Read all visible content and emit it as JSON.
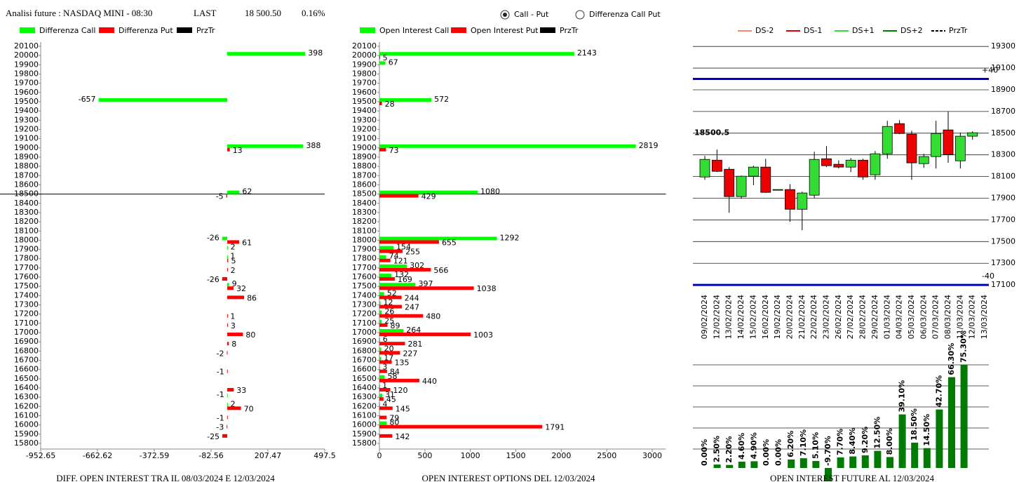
{
  "header": {
    "title": "Analisi future : NASDAQ MINI - 08:30",
    "last_label": "LAST",
    "last_value": "18 500.50",
    "change": "0.16%"
  },
  "mode_options": [
    {
      "label": "Call - Put",
      "selected": true
    },
    {
      "label": "Differenza Call Put",
      "selected": false
    }
  ],
  "chart_data": [
    {
      "type": "hbar",
      "xlabel": "DIFF. OPEN INTEREST TRA IL 08/03/2024 E 12/03/2024",
      "categories": [
        "20100",
        "20000",
        "19900",
        "19800",
        "19700",
        "19600",
        "19500",
        "19400",
        "19300",
        "19200",
        "19100",
        "19000",
        "18900",
        "18800",
        "18700",
        "18600",
        "18500",
        "18400",
        "18300",
        "18200",
        "18100",
        "18000",
        "17900",
        "17800",
        "17700",
        "17600",
        "17500",
        "17400",
        "17300",
        "17200",
        "17100",
        "17000",
        "16900",
        "16800",
        "16700",
        "16600",
        "16500",
        "16400",
        "16300",
        "16200",
        "16100",
        "16000",
        "15900",
        "15800"
      ],
      "series": [
        {
          "name": "Differenza Call",
          "color": "#00ff00",
          "values": [
            null,
            398,
            null,
            null,
            null,
            null,
            -657,
            null,
            null,
            null,
            null,
            388,
            null,
            null,
            null,
            null,
            62,
            null,
            null,
            null,
            null,
            -26,
            2,
            1,
            null,
            null,
            9,
            null,
            null,
            null,
            null,
            null,
            null,
            null,
            null,
            null,
            null,
            null,
            -1,
            2,
            null,
            null,
            null,
            null
          ]
        },
        {
          "name": "Differenza Put",
          "color": "#ff0000",
          "values": [
            null,
            null,
            null,
            null,
            null,
            null,
            null,
            null,
            null,
            null,
            null,
            13,
            null,
            null,
            null,
            null,
            -5,
            null,
            null,
            null,
            null,
            61,
            null,
            5,
            2,
            -26,
            32,
            86,
            null,
            1,
            3,
            80,
            8,
            -2,
            null,
            -1,
            null,
            33,
            null,
            70,
            -1,
            -3,
            -25,
            null
          ]
        }
      ],
      "price_series": {
        "name": "PrzTr",
        "color": "#000000",
        "value": "18500"
      },
      "xlim": [
        -952.65,
        497.5
      ],
      "xticks": [
        -952.65,
        -662.62,
        -372.59,
        -82.56,
        207.47,
        497.5
      ]
    },
    {
      "type": "hbar",
      "xlabel": "OPEN INTEREST OPTIONS DEL 12/03/2024",
      "categories": [
        "20100",
        "20000",
        "19900",
        "19800",
        "19700",
        "19600",
        "19500",
        "19400",
        "19300",
        "19200",
        "19100",
        "19000",
        "18900",
        "18800",
        "18700",
        "18600",
        "18500",
        "18400",
        "18300",
        "18200",
        "18100",
        "18000",
        "17900",
        "17800",
        "17700",
        "17600",
        "17500",
        "17400",
        "17300",
        "17200",
        "17100",
        "17000",
        "16900",
        "16800",
        "16700",
        "16600",
        "16500",
        "16400",
        "16300",
        "16200",
        "16100",
        "16000",
        "15900",
        "15800"
      ],
      "series": [
        {
          "name": "Open Interest Call",
          "color": "#00ff00",
          "values": [
            null,
            2143,
            67,
            null,
            null,
            null,
            572,
            null,
            null,
            null,
            null,
            2819,
            null,
            null,
            null,
            null,
            1080,
            null,
            null,
            null,
            null,
            1292,
            154,
            74,
            302,
            132,
            397,
            52,
            12,
            26,
            25,
            264,
            6,
            20,
            17,
            3,
            58,
            1,
            31,
            4,
            null,
            80,
            null,
            null
          ]
        },
        {
          "name": "Open Interest Put",
          "color": "#ff0000",
          "values": [
            null,
            5,
            null,
            null,
            null,
            null,
            28,
            null,
            null,
            null,
            null,
            73,
            null,
            null,
            null,
            null,
            429,
            null,
            null,
            null,
            null,
            655,
            255,
            121,
            566,
            169,
            1038,
            244,
            247,
            480,
            89,
            1003,
            281,
            227,
            135,
            84,
            440,
            120,
            45,
            145,
            79,
            1791,
            142,
            null
          ]
        }
      ],
      "price_series": {
        "name": "PrzTr",
        "color": "#000000",
        "value": "18500"
      },
      "xlim": [
        0,
        3150
      ],
      "xticks": [
        0,
        500,
        1000,
        1500,
        2000,
        2500,
        3000
      ]
    },
    {
      "type": "candlestick",
      "x": [
        "09/02/2024",
        "12/02/2024",
        "13/02/2024",
        "14/02/2024",
        "15/02/2024",
        "16/02/2024",
        "19/02/2024",
        "20/02/2024",
        "21/02/2024",
        "22/02/2024",
        "23/02/2024",
        "26/02/2024",
        "27/02/2024",
        "28/02/2024",
        "29/02/2024",
        "01/03/2024",
        "04/03/2024",
        "05/03/2024",
        "06/03/2024",
        "07/03/2024",
        "08/03/2024",
        "11/03/2024",
        "12/03/2024",
        "13/03/2024"
      ],
      "open": [
        18096,
        18251,
        18167,
        17915,
        18103,
        18187,
        17980,
        17980,
        17798,
        17928,
        18264,
        18213,
        18187,
        18251,
        18116,
        18310,
        18588,
        18491,
        18219,
        18284,
        18530,
        18245,
        18472,
        null
      ],
      "high": [
        18290,
        18349,
        18187,
        18109,
        18200,
        18264,
        17980,
        18031,
        17960,
        18329,
        18381,
        18250,
        18270,
        18264,
        18335,
        18614,
        18620,
        18523,
        18310,
        18614,
        18698,
        18505,
        18517,
        null
      ],
      "low": [
        18070,
        18141,
        17766,
        17895,
        18020,
        17948,
        17980,
        17682,
        17604,
        17902,
        18187,
        18174,
        18141,
        18070,
        18070,
        18264,
        18491,
        18070,
        18180,
        18174,
        18226,
        18174,
        18440,
        null
      ],
      "close": [
        18258,
        18148,
        17915,
        18103,
        18187,
        17954,
        17980,
        17798,
        17948,
        18258,
        18200,
        18187,
        18251,
        18096,
        18310,
        18562,
        18497,
        18226,
        18284,
        18497,
        18303,
        18472,
        18504,
        null
      ],
      "up_color": "#33dd33",
      "down_color": "#ee0000",
      "ylim": [
        17075,
        19340
      ],
      "yticks": [
        17100,
        17300,
        17500,
        17700,
        17900,
        18100,
        18300,
        18500,
        18700,
        18900,
        19100,
        19300
      ],
      "legend": [
        {
          "name": "DS-2",
          "color": "#f08a6a",
          "dash": false
        },
        {
          "name": "DS-1",
          "color": "#e00000",
          "dash": false
        },
        {
          "name": "DS+1",
          "color": "#33dd33",
          "dash": false
        },
        {
          "name": "DS+2",
          "color": "#007a00",
          "dash": false
        },
        {
          "name": "PrzTr",
          "color": "#000000",
          "dash": true
        }
      ],
      "levels": [
        {
          "value": 19000,
          "label": "+40",
          "color": "#0000cc"
        },
        {
          "value": 17100,
          "label": "-40",
          "color": "#0000cc"
        }
      ],
      "last_price": 18500.5
    },
    {
      "type": "bar",
      "xlabel": "OPEN INTEREST FUTURE AL 12/03/2024",
      "color": "#007a00",
      "values": [
        0,
        2.5,
        2.2,
        4.6,
        4.9,
        0,
        0,
        6.2,
        7.1,
        5.1,
        -9.7,
        7.7,
        8.4,
        9.2,
        12.5,
        8,
        39.1,
        18.5,
        14.5,
        42.7,
        66.3,
        75.3
      ],
      "value_labels": [
        "0.00%",
        "2.50%",
        "2.20%",
        "4.60%",
        "4.90%",
        "0.00%",
        "0.00%",
        "6.20%",
        "7.10%",
        "5.10%",
        "-9.70%",
        "7.70%",
        "8.40%",
        "9.20%",
        "12.50%",
        "8.00%",
        "39.10%",
        "18.50%",
        "14.50%",
        "42.70%",
        "66.30%",
        "75.30%"
      ],
      "ylim": [
        0,
        75.3
      ]
    }
  ]
}
